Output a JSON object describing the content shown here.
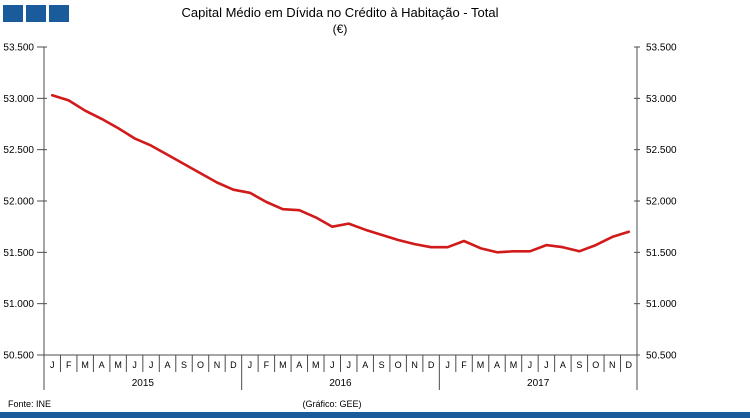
{
  "logo": {
    "square_color": "#1a5b9c",
    "square_count": 3
  },
  "header": {
    "title": "Capital Médio em Dívida no Crédito à Habitação - Total",
    "subtitle": "(€)"
  },
  "footer": {
    "source": "Fonte: INE",
    "credit": "(Gráfico: GEE)",
    "bar_color": "#1a5b9c"
  },
  "chart_data": {
    "type": "line",
    "title": "Capital Médio em Dívida no Crédito à Habitação - Total",
    "subtitle": "(€)",
    "ylim": [
      50500,
      53500
    ],
    "ytick_step": 500,
    "ytick_labels": [
      "53.500",
      "53.000",
      "52.500",
      "52.000",
      "51.500",
      "51.000",
      "50.500"
    ],
    "ytick_values": [
      53500,
      53000,
      52500,
      52000,
      51500,
      51000,
      50500
    ],
    "month_letters": [
      "J",
      "F",
      "M",
      "A",
      "M",
      "J",
      "J",
      "A",
      "S",
      "O",
      "N",
      "D"
    ],
    "years": [
      "2015",
      "2016",
      "2017"
    ],
    "grid": false,
    "legend": "none",
    "line_color": "#d11a1a",
    "axis_color": "#4d4d4d",
    "values": [
      53030,
      52980,
      52880,
      52800,
      52710,
      52610,
      52540,
      52450,
      52360,
      52270,
      52180,
      52110,
      52080,
      51990,
      51920,
      51910,
      51840,
      51750,
      51780,
      51720,
      51670,
      51620,
      51580,
      51550,
      51550,
      51610,
      51540,
      51500,
      51510,
      51510,
      51570,
      51550,
      51510,
      51570,
      51650,
      51700
    ]
  }
}
